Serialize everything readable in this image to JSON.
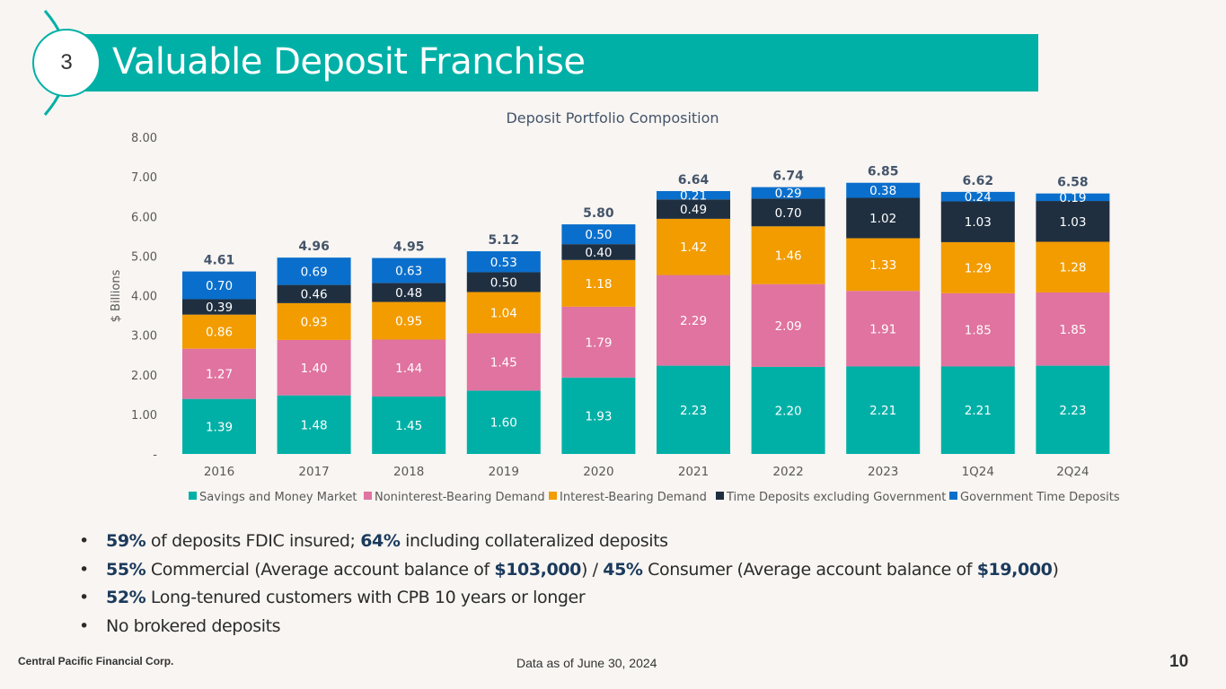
{
  "header": {
    "section_number": "3",
    "title": "Valuable Deposit Franchise"
  },
  "chart_data": {
    "type": "stacked-bar",
    "title": "Deposit Portfolio Composition",
    "ylabel": "$ Billions",
    "ylim": [
      0,
      8
    ],
    "yticks": [
      "-",
      "1.00",
      "2.00",
      "3.00",
      "4.00",
      "5.00",
      "6.00",
      "7.00",
      "8.00"
    ],
    "grid": false,
    "legend_position": "bottom",
    "categories": [
      "2016",
      "2017",
      "2018",
      "2019",
      "2020",
      "2021",
      "2022",
      "2023",
      "1Q24",
      "2Q24"
    ],
    "series": [
      {
        "name": "Savings and Money Market",
        "color": "#00b0a6",
        "values": [
          1.39,
          1.48,
          1.45,
          1.6,
          1.93,
          2.23,
          2.2,
          2.21,
          2.21,
          2.23
        ]
      },
      {
        "name": "Noninterest-Bearing Demand",
        "color": "#e0739f",
        "values": [
          1.27,
          1.4,
          1.44,
          1.45,
          1.79,
          2.29,
          2.09,
          1.91,
          1.85,
          1.85
        ]
      },
      {
        "name": "Interest-Bearing Demand",
        "color": "#f29c00",
        "values": [
          0.86,
          0.93,
          0.95,
          1.04,
          1.18,
          1.42,
          1.46,
          1.33,
          1.29,
          1.28
        ]
      },
      {
        "name": "Time Deposits excluding Government",
        "color": "#1f2f40",
        "values": [
          0.39,
          0.46,
          0.48,
          0.5,
          0.4,
          0.49,
          0.7,
          1.02,
          1.03,
          1.03
        ]
      },
      {
        "name": "Government Time Deposits",
        "color": "#0a6fcc",
        "values": [
          0.7,
          0.69,
          0.63,
          0.53,
          0.5,
          0.21,
          0.29,
          0.38,
          0.24,
          0.19
        ]
      }
    ],
    "totals": [
      4.61,
      4.96,
      4.95,
      5.12,
      5.8,
      6.64,
      6.74,
      6.85,
      6.62,
      6.58
    ]
  },
  "bullets": [
    [
      {
        "t": "59%",
        "b": true
      },
      {
        "t": " of deposits FDIC insured; ",
        "b": false
      },
      {
        "t": "64%",
        "b": true
      },
      {
        "t": " including collateralized deposits",
        "b": false
      }
    ],
    [
      {
        "t": "55%",
        "b": true
      },
      {
        "t": " Commercial (Average account balance of ",
        "b": false
      },
      {
        "t": "$103,000",
        "b": true
      },
      {
        "t": ") / ",
        "b": false
      },
      {
        "t": "45%",
        "b": true
      },
      {
        "t": " Consumer (Average account balance of ",
        "b": false
      },
      {
        "t": "$19,000",
        "b": true
      },
      {
        "t": ")",
        "b": false
      }
    ],
    [
      {
        "t": "52%",
        "b": true
      },
      {
        "t": " Long-tenured customers with CPB 10 years or longer",
        "b": false
      }
    ],
    [
      {
        "t": "No brokered deposits",
        "b": false
      }
    ]
  ],
  "bullet_symbol": "•",
  "footer": {
    "company": "Central Pacific Financial Corp.",
    "data_as_of": "Data as of June 30, 2024",
    "page_number": "10"
  }
}
